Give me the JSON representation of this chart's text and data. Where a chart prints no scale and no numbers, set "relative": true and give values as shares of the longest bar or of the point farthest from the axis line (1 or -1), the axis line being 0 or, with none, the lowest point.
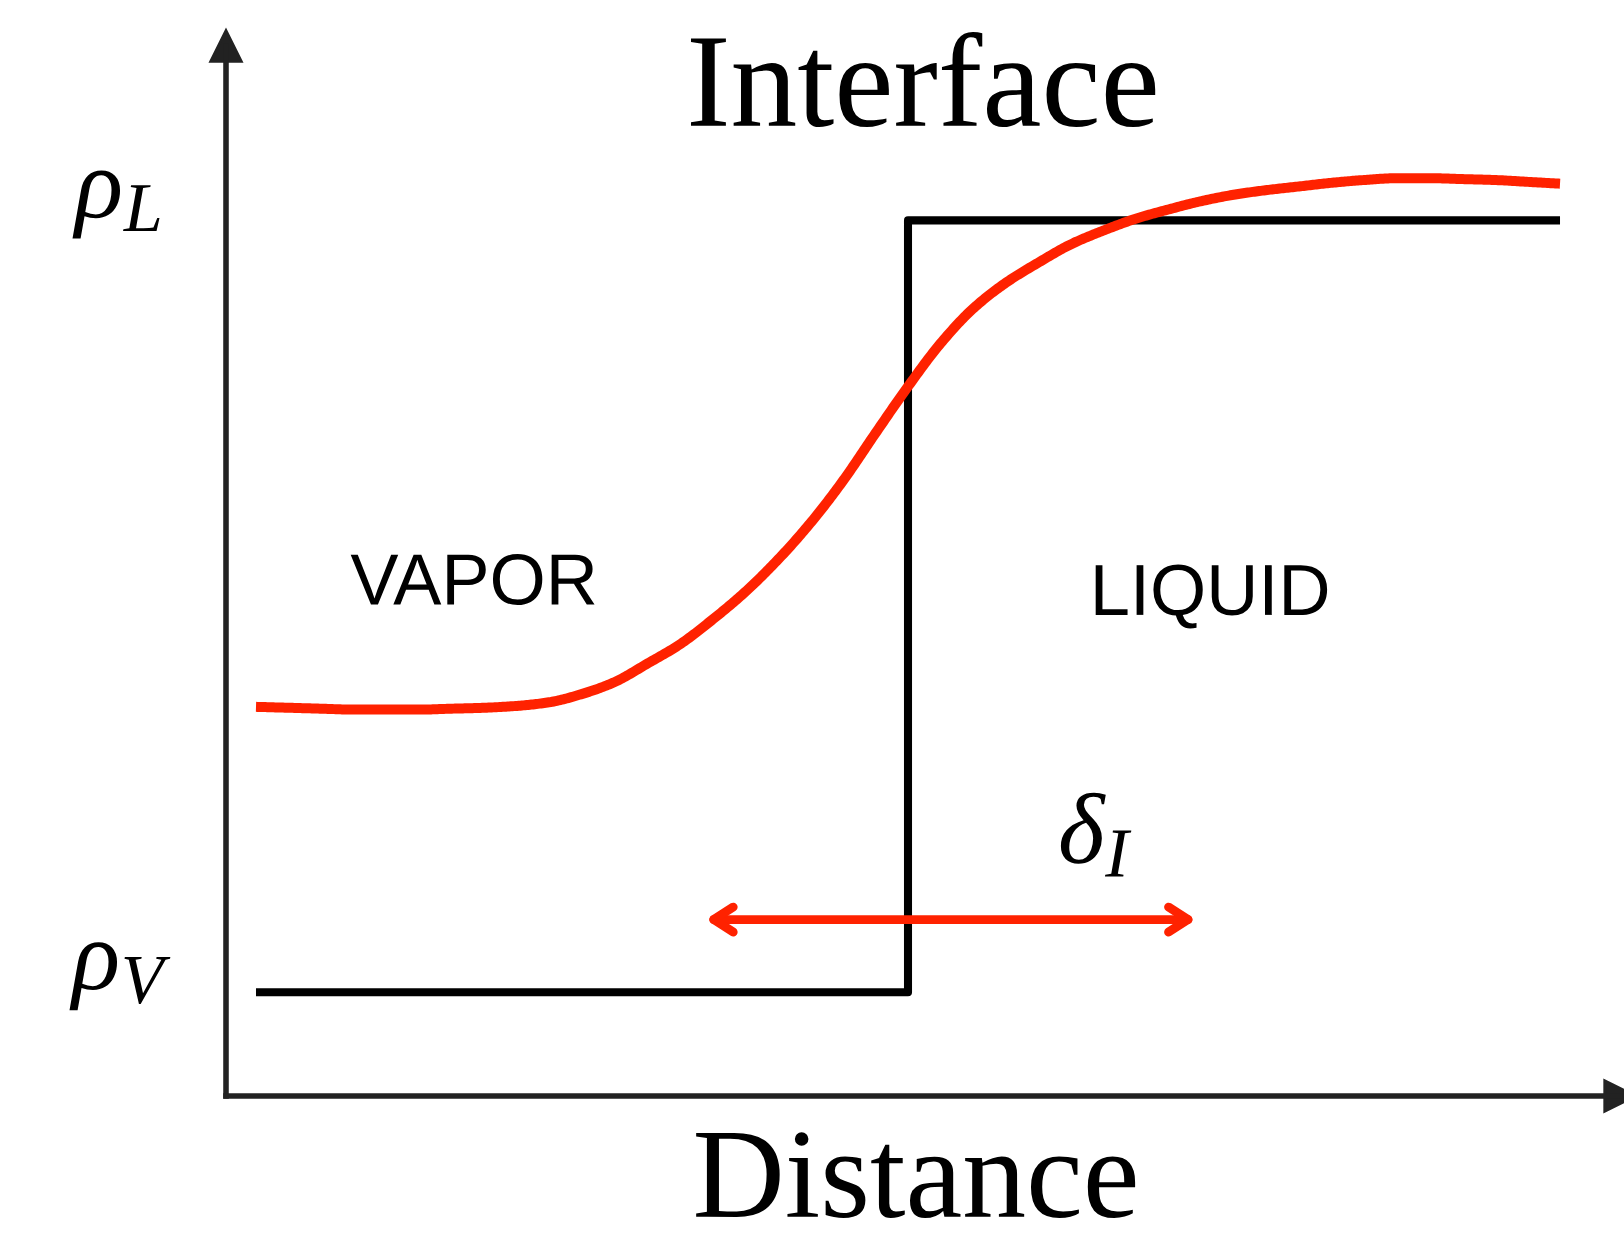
{
  "chart_data": {
    "type": "line",
    "title": "Interface",
    "xlabel": "Distance",
    "relative": true,
    "categories": [
      null,
      null,
      null,
      null,
      null,
      null,
      null,
      null,
      null,
      null,
      null,
      null,
      null,
      null,
      null,
      null,
      null,
      null,
      null,
      null,
      null,
      null,
      null,
      null,
      null,
      null,
      null,
      null,
      null,
      null,
      null,
      null,
      null,
      null,
      null,
      null,
      null,
      null,
      null,
      null,
      null
    ],
    "series": [
      {
        "type": "step",
        "color": "#000000",
        "values": [
          0.113,
          0.113,
          0.113,
          0.113,
          0.113,
          0.113,
          0.113,
          0.113,
          0.113,
          0.113,
          0.113,
          0.113,
          0.113,
          0.113,
          0.113,
          0.113,
          0.113,
          0.113,
          0.113,
          0.113,
          0.954,
          0.954,
          0.954,
          0.954,
          0.954,
          0.954,
          0.954,
          0.954,
          0.954,
          0.954,
          0.954,
          0.954,
          0.954,
          0.954,
          0.954,
          0.954,
          0.954,
          0.954,
          0.954,
          0.954,
          0.954
        ]
      },
      {
        "color": "#ff2200",
        "values": [
          0.424,
          0.423,
          0.422,
          0.421,
          0.421,
          0.421,
          0.422,
          0.423,
          0.425,
          0.429,
          0.438,
          0.451,
          0.471,
          0.492,
          0.519,
          0.549,
          0.584,
          0.624,
          0.67,
          0.722,
          0.773,
          0.82,
          0.858,
          0.886,
          0.908,
          0.928,
          0.943,
          0.956,
          0.966,
          0.975,
          0.982,
          0.987,
          0.991,
          0.995,
          0.998,
          1,
          1,
          0.999,
          0.998,
          0.996,
          0.994
        ]
      }
    ],
    "annotations": [
      "VAPOR",
      "LIQUID",
      "δ$_{I}$",
      "ρ$_{L}$",
      "ρ$_{V}$"
    ]
  }
}
